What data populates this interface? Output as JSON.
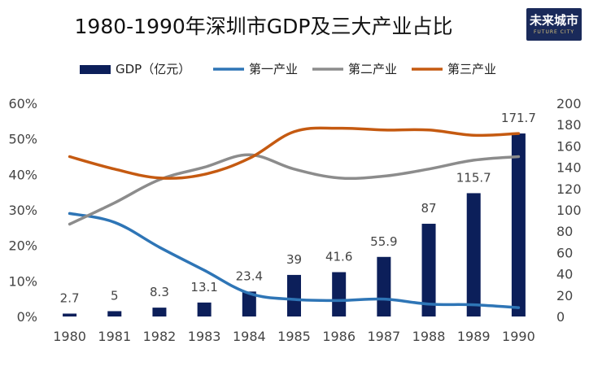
{
  "logo": {
    "text": "未来城市",
    "subtext": "FUTURE CITY"
  },
  "chart_data": {
    "type": "bar+line",
    "title": "1980-1990年深圳市GDP及三大产业占比",
    "categories": [
      "1980",
      "1981",
      "1982",
      "1983",
      "1984",
      "1985",
      "1986",
      "1987",
      "1988",
      "1989",
      "1990"
    ],
    "bar_series": {
      "name": "GDP（亿元）",
      "color": "#0c1f5a",
      "axis": "right",
      "values": [
        2.7,
        5,
        8.3,
        13.1,
        23.4,
        39,
        41.6,
        55.9,
        87,
        115.7,
        171.7
      ],
      "labels": [
        "2.7",
        "5",
        "8.3",
        "13.1",
        "23.4",
        "39",
        "41.6",
        "55.9",
        "87",
        "115.7",
        "171.7"
      ]
    },
    "line_series": [
      {
        "name": "第一产业",
        "color": "#2e75b6",
        "axis": "left",
        "values": [
          29,
          26.5,
          19.5,
          13,
          6.5,
          4.8,
          4.5,
          4.9,
          3.5,
          3.3,
          2.5
        ]
      },
      {
        "name": "第二产业",
        "color": "#8c8c8c",
        "axis": "left",
        "values": [
          26,
          32,
          38.5,
          42,
          45.5,
          41.5,
          39,
          39.5,
          41.5,
          44,
          45
        ]
      },
      {
        "name": "第三产业",
        "color": "#c55a11",
        "axis": "left",
        "values": [
          45,
          41.5,
          39,
          40,
          44.5,
          52,
          53,
          52.5,
          52.5,
          51,
          51.5
        ]
      }
    ],
    "left_axis": {
      "ticks": [
        "0%",
        "10%",
        "20%",
        "30%",
        "40%",
        "50%",
        "60%"
      ],
      "ylim": [
        0,
        60
      ]
    },
    "right_axis": {
      "ticks": [
        "0",
        "20",
        "40",
        "60",
        "80",
        "100",
        "120",
        "140",
        "160",
        "180",
        "200"
      ],
      "ylim": [
        0,
        200
      ]
    },
    "legend_position": "top"
  }
}
